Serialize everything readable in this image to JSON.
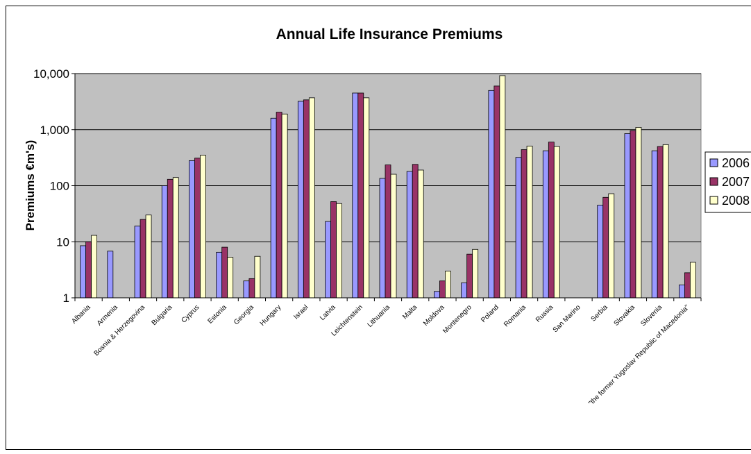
{
  "chart_data": {
    "type": "bar",
    "title": "Annual Life Insurance Premiums",
    "xlabel": "",
    "ylabel": "Premiums €m's)",
    "yscale": "log",
    "ylim": [
      1,
      10000
    ],
    "yticks": [
      {
        "value": 1,
        "label": "1"
      },
      {
        "value": 10,
        "label": "10"
      },
      {
        "value": 100,
        "label": "100"
      },
      {
        "value": 1000,
        "label": "1,000"
      },
      {
        "value": 10000,
        "label": "10,000"
      }
    ],
    "grid": true,
    "legend_position": "right",
    "categories": [
      "Albania",
      "Armenia",
      "Bosnia & Herzegovina",
      "Bulgaria",
      "Cyprus",
      "Estonia",
      "Georgia",
      "Hungary",
      "Israel",
      "Latvia",
      "Leichtenstein",
      "Lithuania",
      "Malta",
      "Moldova",
      "Montenegro",
      "Poland",
      "Romania",
      "Russia",
      "San Marino",
      "Serbia",
      "Slovakia",
      "Slovenia",
      "\"the former Yugoslav Republic of Macedonia\""
    ],
    "series": [
      {
        "name": "2006",
        "color": "#9999ff",
        "values": [
          8.5,
          6.8,
          19,
          100,
          280,
          6.5,
          2.0,
          1600,
          3200,
          23,
          4500,
          135,
          180,
          1.3,
          1.85,
          5000,
          320,
          420,
          null,
          45,
          850,
          420,
          1.7
        ]
      },
      {
        "name": "2007",
        "color": "#993366",
        "values": [
          10,
          null,
          25,
          130,
          310,
          8.0,
          2.2,
          2050,
          3400,
          52,
          4500,
          235,
          240,
          2.0,
          6.0,
          6000,
          440,
          600,
          null,
          62,
          960,
          500,
          2.8
        ]
      },
      {
        "name": "2008",
        "color": "#ffffcc",
        "values": [
          13,
          null,
          30,
          140,
          350,
          5.3,
          5.5,
          1900,
          3700,
          48,
          3700,
          160,
          190,
          3.0,
          7.3,
          9200,
          510,
          500,
          null,
          72,
          1100,
          540,
          4.3
        ]
      }
    ]
  }
}
